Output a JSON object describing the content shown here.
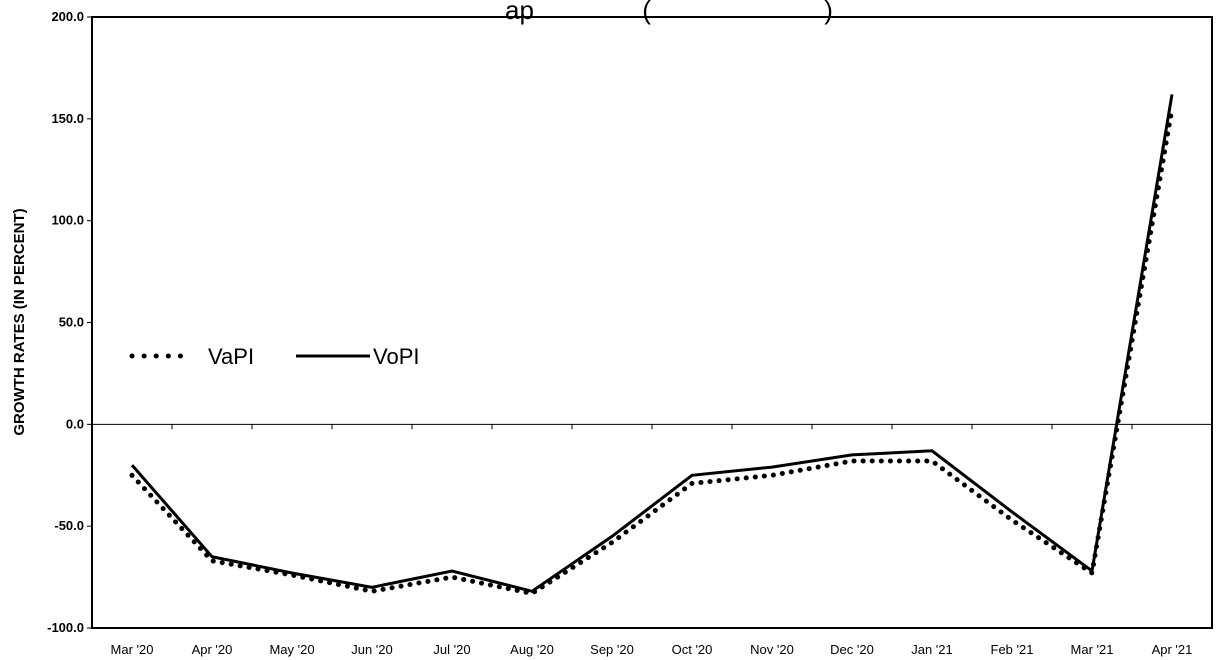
{
  "chart_data": {
    "type": "line",
    "title": "",
    "title_visible_fragment": "ap               (                        )",
    "xlabel": "",
    "ylabel": "GROWTH RATES (IN PERCENT)",
    "ylim": [
      -100,
      200
    ],
    "yticks": [
      "200.0",
      "150.0",
      "100.0",
      "50.0",
      "0.0",
      "-50.0",
      "-100.0"
    ],
    "ytick_values": [
      200,
      150,
      100,
      50,
      0,
      -50,
      -100
    ],
    "categories": [
      "Mar '20",
      "Apr '20",
      "May '20",
      "Jun '20",
      "Jul '20",
      "Aug '20",
      "Sep '20",
      "Oct '20",
      "Nov '20",
      "Dec '20",
      "Jan '21",
      "Feb '21",
      "Mar '21",
      "Apr '21"
    ],
    "grid": false,
    "zero_line": true,
    "legend_position": "center-left",
    "series": [
      {
        "name": "VaPI",
        "style": "dotted",
        "color": "#000000",
        "values": [
          -25,
          -67,
          -74,
          -82,
          -75,
          -83,
          -58,
          -29,
          -25,
          -18,
          -18,
          -47,
          -73,
          155
        ]
      },
      {
        "name": "VoPI",
        "style": "solid",
        "color": "#000000",
        "values": [
          -20,
          -65,
          -73,
          -80,
          -72,
          -82,
          -55,
          -25,
          -21,
          -15,
          -13,
          -43,
          -72,
          162
        ]
      }
    ]
  }
}
